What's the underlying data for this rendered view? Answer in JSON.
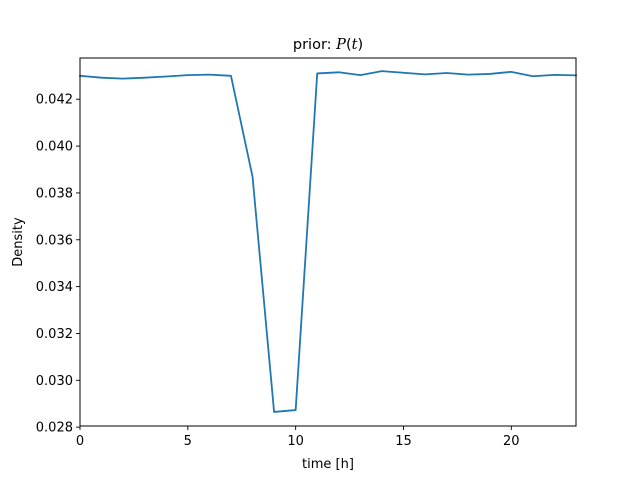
{
  "chart_data": {
    "type": "line",
    "title_prefix": "prior: ",
    "title_math_fn": "P",
    "title_math_open": "(",
    "title_math_var": "t",
    "title_math_close": ")",
    "xlabel": "time [h]",
    "ylabel": "Density",
    "xlim": [
      0,
      23
    ],
    "ylim": [
      0.02805,
      0.04376
    ],
    "xticks": [
      0,
      5,
      10,
      15,
      20
    ],
    "xtick_labels": [
      "0",
      "5",
      "10",
      "15",
      "20"
    ],
    "yticks": [
      0.028,
      0.03,
      0.032,
      0.034,
      0.036,
      0.038,
      0.04,
      0.042
    ],
    "ytick_labels": [
      "0.028",
      "0.030",
      "0.032",
      "0.034",
      "0.036",
      "0.038",
      "0.040",
      "0.042"
    ],
    "grid": false,
    "series": [
      {
        "color": "#1f77b4",
        "x": [
          0,
          1,
          2,
          3,
          4,
          5,
          6,
          7,
          8,
          9,
          10,
          11,
          12,
          13,
          14,
          15,
          16,
          17,
          18,
          19,
          20,
          21,
          22,
          23
        ],
        "y": [
          0.043,
          0.04292,
          0.04288,
          0.04292,
          0.04297,
          0.04303,
          0.04305,
          0.043,
          0.0387,
          0.02865,
          0.02873,
          0.0431,
          0.04315,
          0.04303,
          0.0432,
          0.04313,
          0.04306,
          0.04312,
          0.04305,
          0.04308,
          0.04317,
          0.04298,
          0.04304,
          0.04302
        ]
      }
    ]
  }
}
